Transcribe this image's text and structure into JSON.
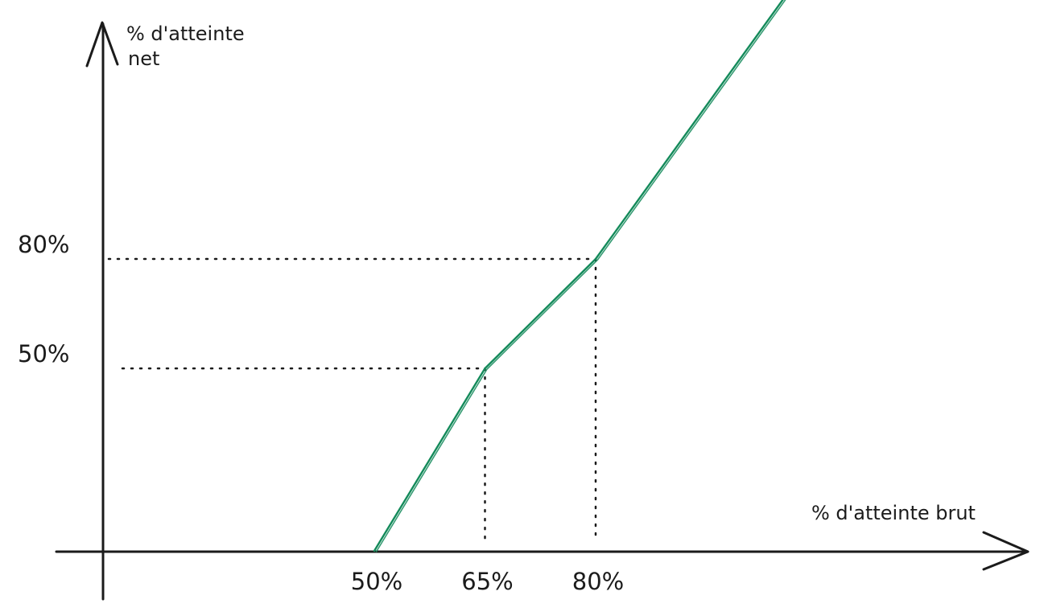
{
  "chart_data": {
    "type": "line",
    "xlabel": "% d'atteinte brut",
    "ylabel_lines": [
      "% d'atteinte",
      "net"
    ],
    "series": [
      {
        "color": "#138a5a",
        "points": [
          {
            "x": 50,
            "y": 0
          },
          {
            "x": 65,
            "y": 50
          },
          {
            "x": 80,
            "y": 80
          },
          {
            "x": 115,
            "y": 178
          }
        ]
      }
    ],
    "x_ticks": [
      {
        "value": 50,
        "label": "50%"
      },
      {
        "value": 65,
        "label": "65%"
      },
      {
        "value": 80,
        "label": "80%"
      }
    ],
    "y_ticks": [
      {
        "value": 50,
        "label": "50%"
      },
      {
        "value": 80,
        "label": "80%"
      }
    ],
    "guides": [
      {
        "x": 65,
        "y": 50
      },
      {
        "x": 80,
        "y": 80
      }
    ],
    "grid": false,
    "legend": "none",
    "colors": {
      "axis": "#1b1b1b",
      "line": "#138a5a",
      "guide": "#1b1b1b"
    }
  }
}
